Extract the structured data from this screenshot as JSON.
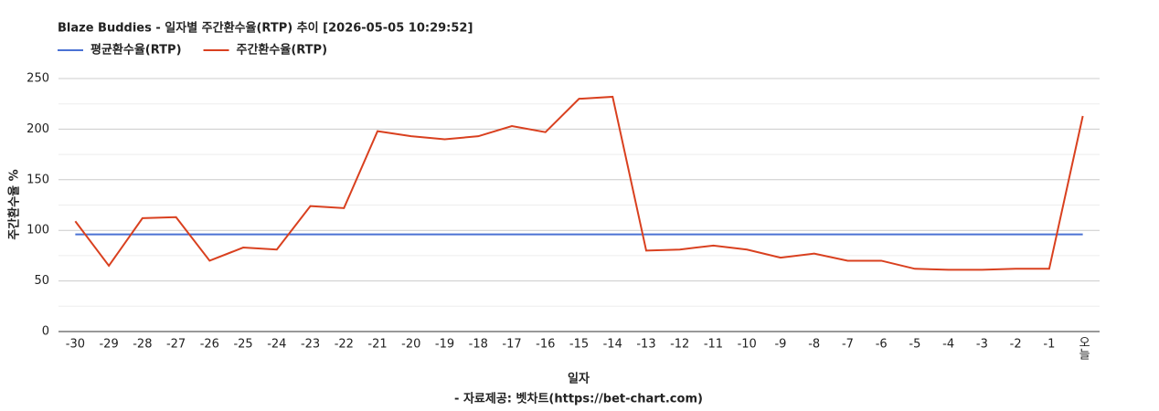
{
  "chart_data": {
    "type": "line",
    "title": "Blaze Buddies - 일자별 주간환수율(RTP) 추이 [2026-05-05 10:29:52]",
    "x_label": "일자",
    "y_label": "주간환수율 %",
    "footer": "- 자료제공: 벳차트(https://bet-chart.com)",
    "categories": [
      "-30",
      "-29",
      "-28",
      "-27",
      "-26",
      "-25",
      "-24",
      "-23",
      "-22",
      "-21",
      "-20",
      "-19",
      "-18",
      "-17",
      "-16",
      "-15",
      "-14",
      "-13",
      "-12",
      "-11",
      "-10",
      "-9",
      "-8",
      "-7",
      "-6",
      "-5",
      "-4",
      "-3",
      "-2",
      "-1",
      "오늘"
    ],
    "series": [
      {
        "name": "평균환수율(RTP)",
        "color": "#4a72d4",
        "values": [
          96,
          96,
          96,
          96,
          96,
          96,
          96,
          96,
          96,
          96,
          96,
          96,
          96,
          96,
          96,
          96,
          96,
          96,
          96,
          96,
          96,
          96,
          96,
          96,
          96,
          96,
          96,
          96,
          96,
          96,
          96
        ]
      },
      {
        "name": "주간환수율(RTP)",
        "color": "#d9401f",
        "values": [
          109,
          65,
          112,
          113,
          70,
          83,
          81,
          124,
          122,
          198,
          193,
          190,
          193,
          203,
          197,
          230,
          232,
          80,
          81,
          85,
          81,
          73,
          77,
          70,
          70,
          62,
          61,
          61,
          62,
          62,
          213
        ]
      }
    ],
    "ylim": [
      0,
      250
    ],
    "yticks": [
      0,
      50,
      100,
      150,
      200,
      250
    ],
    "y_minor_ticks": [
      25,
      75,
      125,
      175,
      225
    ],
    "grid": true,
    "legend": "top-left"
  }
}
